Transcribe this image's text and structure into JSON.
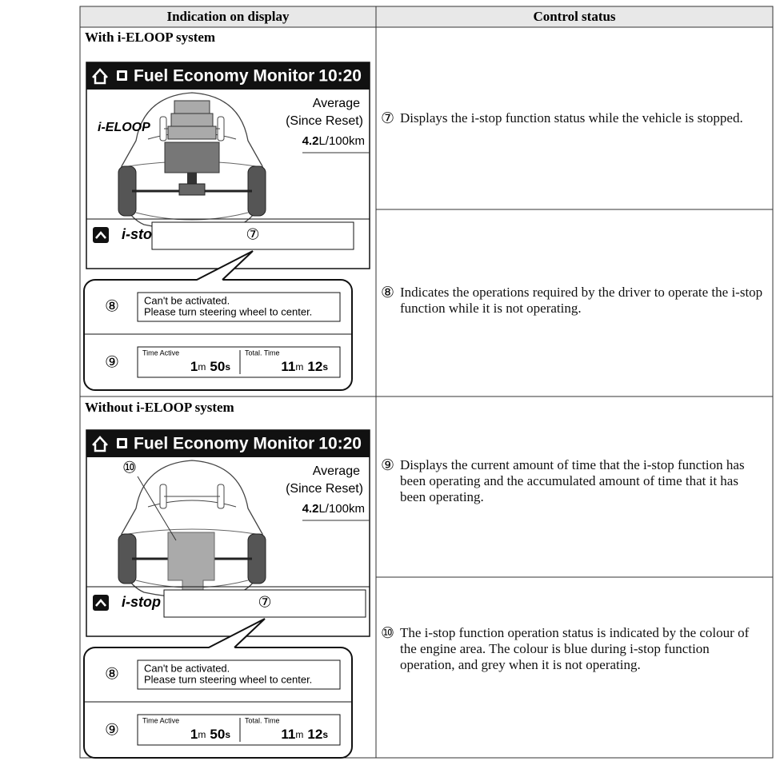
{
  "header": {
    "left": "Indication on display",
    "right": "Control status"
  },
  "sections": [
    {
      "title": "With i-ELOOP system",
      "screen": {
        "title": "Fuel Economy Monitor",
        "time": "10:20",
        "average": "Average",
        "since_reset": "(Since Reset)",
        "value": "4.2",
        "unit": "L/100km",
        "eloop": "i-ELOOP",
        "istop": "i-stop",
        "status_marker": "⑦"
      },
      "callout": {
        "message_marker": "⑧",
        "message_line1": "Can't be activated.",
        "message_line2": "Please turn steering wheel to center.",
        "time_marker": "⑨",
        "time_active": "Time Active",
        "active_min": "1",
        "active_sec": "50",
        "total_time": "Total. Time",
        "total_min": "11",
        "total_sec": "12",
        "min_unit": "m",
        "sec_unit": "s"
      }
    },
    {
      "title": "Without i-ELOOP system",
      "screen": {
        "title": "Fuel Economy Monitor",
        "time": "10:20",
        "average": "Average",
        "since_reset": "(Since Reset)",
        "value": "4.2",
        "unit": "L/100km",
        "engine_marker": "⑩",
        "istop": "i-stop",
        "status_marker": "⑦"
      },
      "callout": {
        "message_marker": "⑧",
        "message_line1": "Can't be activated.",
        "message_line2": "Please turn steering wheel to center.",
        "time_marker": "⑨",
        "time_active": "Time Active",
        "active_min": "1",
        "active_sec": "50",
        "total_time": "Total. Time",
        "total_min": "11",
        "total_sec": "12",
        "min_unit": "m",
        "sec_unit": "s"
      }
    }
  ],
  "statuses": [
    {
      "marker": "⑦",
      "text": "Displays the i-stop function status while the vehicle is stopped."
    },
    {
      "marker": "⑧",
      "text": "Indicates the operations required by the driver to operate the i-stop function while it is not operating."
    },
    {
      "marker": "⑨",
      "text": "Displays the current amount of time that the i-stop function has been operating and the accumulated amount of time that it has been operating."
    },
    {
      "marker": "⑩",
      "text": "The i-stop function operation status is indicated by the colour of the engine area. The colour is blue during i-stop function operation, and grey when it is not operating."
    }
  ]
}
